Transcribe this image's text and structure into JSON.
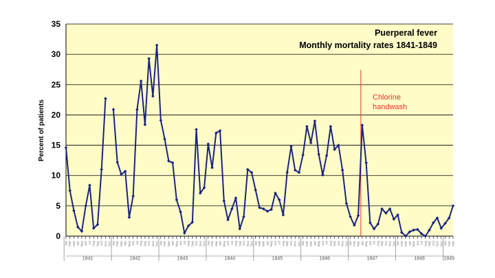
{
  "chart_data": {
    "type": "line",
    "title": "Puerperal fever",
    "subtitle": "Monthly mortality rates 1841-1849",
    "ylabel": "Percent of patients",
    "xlabel": "",
    "ylim": [
      0,
      35
    ],
    "yticks": [
      0,
      5,
      10,
      15,
      20,
      25,
      30,
      35
    ],
    "grid": true,
    "annotation": {
      "line1": "Chlorine",
      "line2": "handwash",
      "x_index": 75,
      "color": "#e8322b"
    },
    "months": [
      "Jan",
      "Feb",
      "Mar",
      "Apr",
      "May",
      "Jun",
      "Jul",
      "Aug",
      "Sep",
      "Oct",
      "Nov",
      "Dec"
    ],
    "years": [
      {
        "label": "1841",
        "start": 0,
        "end": 11
      },
      {
        "label": "1842",
        "start": 12,
        "end": 23
      },
      {
        "label": "1843",
        "start": 24,
        "end": 35
      },
      {
        "label": "1844",
        "start": 36,
        "end": 47
      },
      {
        "label": "1845",
        "start": 48,
        "end": 59
      },
      {
        "label": "1846",
        "start": 60,
        "end": 71
      },
      {
        "label": "1847",
        "start": 72,
        "end": 83
      },
      {
        "label": "1848",
        "start": 84,
        "end": 95
      },
      {
        "label": "1849",
        "start": 96,
        "end": 98
      }
    ],
    "series": [
      {
        "name": "Monthly mortality rate",
        "color": "#1a237e",
        "values": [
          14.6,
          7.5,
          4.2,
          1.5,
          0.8,
          5.0,
          8.4,
          1.3,
          1.9,
          11.0,
          22.7,
          null,
          20.9,
          12.2,
          10.2,
          10.7,
          3.1,
          6.6,
          20.9,
          25.6,
          18.4,
          29.3,
          23.1,
          31.5,
          19.1,
          16.0,
          12.4,
          12.1,
          6.0,
          4.0,
          0.5,
          1.7,
          2.3,
          17.6,
          7.1,
          8.0,
          15.2,
          11.3,
          17.0,
          17.4,
          5.8,
          2.7,
          4.5,
          6.3,
          1.2,
          3.2,
          11.0,
          10.5,
          7.6,
          4.7,
          4.5,
          4.1,
          4.4,
          7.1,
          6.0,
          3.5,
          10.5,
          14.8,
          10.9,
          10.5,
          13.4,
          18.1,
          15.4,
          19.0,
          13.5,
          10.1,
          13.3,
          18.1,
          14.3,
          15.0,
          10.9,
          5.4,
          3.2,
          1.8,
          3.4,
          18.3,
          12.1,
          2.2,
          1.2,
          2.0,
          4.5,
          3.8,
          4.5,
          2.8,
          3.5,
          0.6,
          0.0,
          0.7,
          1.0,
          1.1,
          0.4,
          0.0,
          1.0,
          2.2,
          3.0,
          1.3,
          2.1,
          3.0,
          5.0
        ]
      }
    ]
  }
}
